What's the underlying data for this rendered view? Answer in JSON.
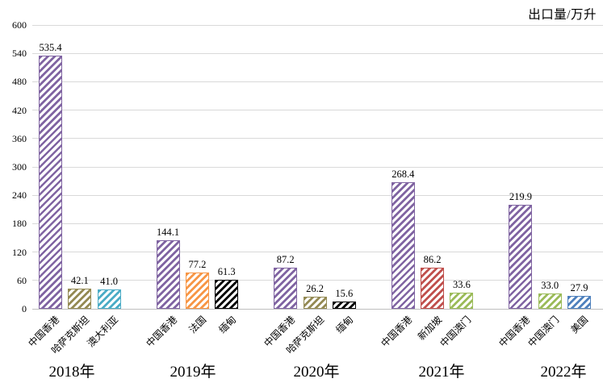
{
  "title": "出口量/万升",
  "chart_data": {
    "type": "bar",
    "title": "出口量/万升",
    "xlabel": "",
    "ylabel": "出口量/万升",
    "ylim": [
      0,
      600
    ],
    "yticks": [
      0,
      60,
      120,
      180,
      240,
      300,
      360,
      420,
      480,
      540,
      600
    ],
    "grid": true,
    "legend": "none",
    "bar_style": "diagonal-hatch",
    "groups": [
      {
        "year": "2018年",
        "bars": [
          {
            "label": "中国香港",
            "value": 535.4,
            "display": "535.4",
            "color": "#8064A2"
          },
          {
            "label": "哈萨克斯坦",
            "value": 42.1,
            "display": "42.1",
            "color": "#948A54"
          },
          {
            "label": "澳大利亚",
            "value": 41.0,
            "display": "41.0",
            "color": "#4BACC6"
          }
        ]
      },
      {
        "year": "2019年",
        "bars": [
          {
            "label": "中国香港",
            "value": 144.1,
            "display": "144.1",
            "color": "#8064A2"
          },
          {
            "label": "法国",
            "value": 77.2,
            "display": "77.2",
            "color": "#F79646"
          },
          {
            "label": "缅甸",
            "value": 61.3,
            "display": "61.3",
            "color": "#000000"
          }
        ]
      },
      {
        "year": "2020年",
        "bars": [
          {
            "label": "中国香港",
            "value": 87.2,
            "display": "87.2",
            "color": "#8064A2"
          },
          {
            "label": "哈萨克斯坦",
            "value": 26.2,
            "display": "26.2",
            "color": "#948A54"
          },
          {
            "label": "缅甸",
            "value": 15.6,
            "display": "15.6",
            "color": "#000000"
          }
        ]
      },
      {
        "year": "2021年",
        "bars": [
          {
            "label": "中国香港",
            "value": 268.4,
            "display": "268.4",
            "color": "#8064A2"
          },
          {
            "label": "新加坡",
            "value": 86.2,
            "display": "86.2",
            "color": "#C0504D"
          },
          {
            "label": "中国澳门",
            "value": 33.6,
            "display": "33.6",
            "color": "#9BBB59"
          }
        ]
      },
      {
        "year": "2022年",
        "bars": [
          {
            "label": "中国香港",
            "value": 219.9,
            "display": "219.9",
            "color": "#8064A2"
          },
          {
            "label": "中国澳门",
            "value": 33.0,
            "display": "33.0",
            "color": "#9BBB59"
          },
          {
            "label": "美国",
            "value": 27.9,
            "display": "27.9",
            "color": "#4F81BD"
          }
        ]
      }
    ],
    "colors": {
      "gridline": "#d9d9d9",
      "axis_line": "#bfbfbf",
      "text": "#000000"
    }
  }
}
